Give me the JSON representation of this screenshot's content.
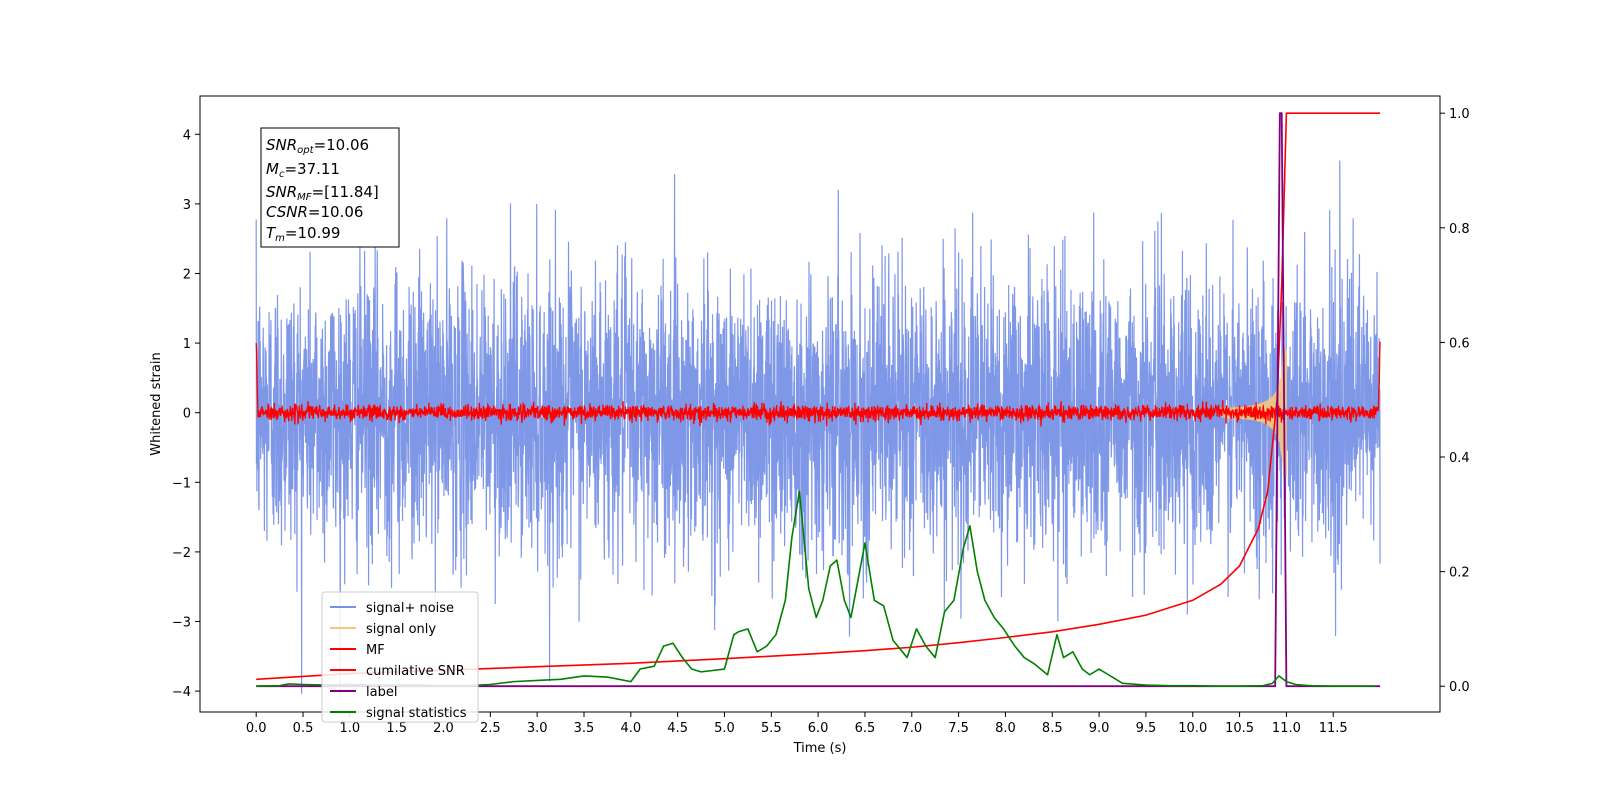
{
  "chart_data": {
    "type": "line",
    "xlabel": "Time (s)",
    "ylabel": "Whitened strain",
    "xlim": [
      -0.6,
      12.64
    ],
    "ylim_left": [
      -4.3,
      4.55
    ],
    "ylim_right": [
      -0.045,
      1.03
    ],
    "x_ticks": [
      "0.0",
      "0.5",
      "1.0",
      "1.5",
      "2.0",
      "2.5",
      "3.0",
      "3.5",
      "4.0",
      "4.5",
      "5.0",
      "5.5",
      "6.0",
      "6.5",
      "7.0",
      "7.5",
      "8.0",
      "8.5",
      "9.0",
      "9.5",
      "10.0",
      "10.5",
      "11.0",
      "11.5"
    ],
    "y_ticks_left": [
      "4",
      "3",
      "2",
      "1",
      "0",
      "−1",
      "−2",
      "−3",
      "−4"
    ],
    "y_ticks_right": [
      "1.0",
      "0.8",
      "0.6",
      "0.4",
      "0.2",
      "0.0"
    ],
    "grid": false,
    "legend_position": "lower-left",
    "stats_box": {
      "snr_opt": {
        "sym": "SNR",
        "sub": "opt",
        "val": "=10.06"
      },
      "mc": {
        "sym": "M",
        "sub": "c",
        "val": "=37.11"
      },
      "snr_mf": {
        "sym": "SNR",
        "sub": "MF",
        "val": "=[11.84]"
      },
      "csnr": {
        "sym": "CSNR",
        "val": "=10.06"
      },
      "tm": {
        "sym": "T",
        "sub": "m",
        "val": "=10.99"
      }
    },
    "series": [
      {
        "name": "signal+ noise",
        "color": "#7891e6",
        "axis": "left",
        "shape": "white noise, sigma ~1, peaks to ~4.1",
        "x_range": [
          0.0,
          12.0
        ]
      },
      {
        "name": "signal only",
        "color": "#f5c77a",
        "axis": "left",
        "shape": "chirp growing toward merger",
        "x_range": [
          10.3,
          11.0
        ]
      },
      {
        "name": "MF",
        "color": "#ff0000",
        "axis": "left",
        "shape": "noise around 0, amplitude ~0.15; spike to 1.0 at both ends",
        "x_range": [
          0.0,
          12.0
        ]
      },
      {
        "name": "cumilative SNR",
        "color": "#ff0000",
        "axis": "right",
        "x": [
          0.0,
          1.0,
          2.0,
          3.0,
          4.0,
          5.0,
          6.0,
          6.5,
          7.0,
          7.5,
          8.0,
          8.5,
          9.0,
          9.5,
          10.0,
          10.3,
          10.5,
          10.7,
          10.8,
          10.9,
          10.95,
          11.0,
          11.5,
          12.0
        ],
        "values": [
          0.012,
          0.022,
          0.028,
          0.034,
          0.04,
          0.048,
          0.057,
          0.062,
          0.068,
          0.076,
          0.085,
          0.095,
          0.108,
          0.124,
          0.15,
          0.178,
          0.21,
          0.275,
          0.34,
          0.5,
          0.7,
          1.0,
          1.0,
          1.0
        ]
      },
      {
        "name": "label",
        "color": "#800080",
        "axis": "right",
        "x": [
          0.0,
          10.88,
          10.93,
          10.95,
          11.0,
          12.0
        ],
        "values": [
          0.0,
          0.0,
          1.0,
          1.0,
          0.0,
          0.0
        ]
      },
      {
        "name": "signal statistics",
        "color": "#008000",
        "axis": "right",
        "x": [
          0.0,
          0.25,
          0.35,
          0.5,
          0.75,
          1.0,
          1.25,
          1.5,
          1.75,
          2.0,
          2.25,
          2.5,
          2.75,
          3.0,
          3.25,
          3.5,
          3.75,
          4.0,
          4.1,
          4.25,
          4.35,
          4.45,
          4.55,
          4.65,
          4.75,
          5.0,
          5.1,
          5.15,
          5.25,
          5.35,
          5.45,
          5.55,
          5.65,
          5.72,
          5.8,
          5.9,
          5.98,
          6.05,
          6.13,
          6.2,
          6.28,
          6.35,
          6.42,
          6.5,
          6.6,
          6.7,
          6.8,
          6.95,
          7.05,
          7.15,
          7.25,
          7.35,
          7.45,
          7.55,
          7.62,
          7.7,
          7.78,
          7.88,
          7.98,
          8.1,
          8.2,
          8.3,
          8.45,
          8.55,
          8.62,
          8.72,
          8.82,
          8.9,
          9.0,
          9.1,
          9.25,
          9.5,
          9.75,
          10.0,
          10.25,
          10.5,
          10.75,
          10.85,
          10.92,
          11.0,
          11.1,
          11.25,
          11.5,
          11.75,
          11.95
        ],
        "values": [
          0.0,
          0.001,
          0.004,
          0.003,
          0.002,
          0.003,
          0.002,
          0.002,
          0.002,
          0.001,
          0.001,
          0.003,
          0.008,
          0.01,
          0.012,
          0.018,
          0.016,
          0.008,
          0.03,
          0.035,
          0.07,
          0.075,
          0.05,
          0.03,
          0.025,
          0.03,
          0.09,
          0.095,
          0.1,
          0.06,
          0.07,
          0.09,
          0.15,
          0.26,
          0.34,
          0.17,
          0.12,
          0.15,
          0.21,
          0.22,
          0.15,
          0.12,
          0.18,
          0.25,
          0.15,
          0.14,
          0.08,
          0.05,
          0.1,
          0.07,
          0.05,
          0.13,
          0.15,
          0.24,
          0.28,
          0.2,
          0.15,
          0.12,
          0.1,
          0.07,
          0.05,
          0.04,
          0.02,
          0.09,
          0.05,
          0.06,
          0.03,
          0.02,
          0.03,
          0.02,
          0.005,
          0.002,
          0.001,
          0.001,
          0.0,
          0.0,
          0.001,
          0.005,
          0.018,
          0.008,
          0.003,
          0.001,
          0.0,
          0.0,
          0.0
        ]
      }
    ]
  }
}
